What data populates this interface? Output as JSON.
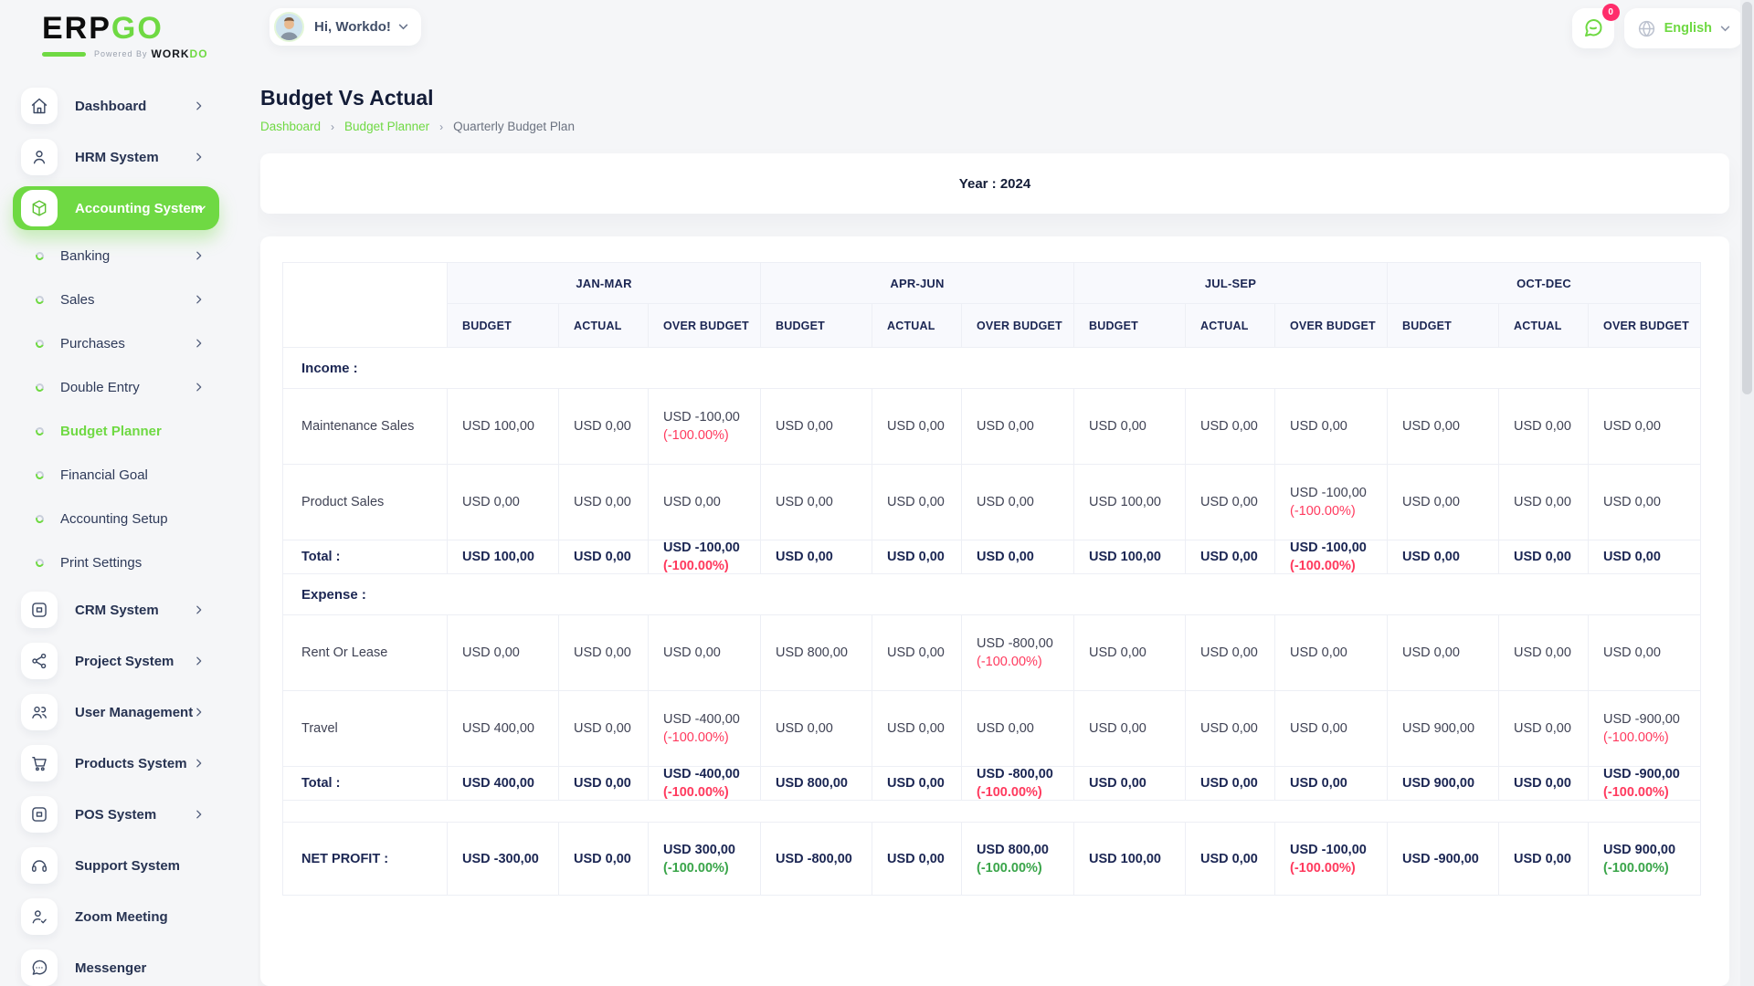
{
  "brand": {
    "logo_erp": "ERP",
    "logo_go": "GO",
    "powered_prefix": "Powered By",
    "powered_brand": "WORK",
    "powered_brand_accent": "DO"
  },
  "topbar": {
    "greeting": "Hi, Workdo!",
    "notification_badge": "0",
    "language": "English"
  },
  "sidebar": {
    "items": [
      {
        "label": "Dashboard",
        "icon": "home",
        "type": "main",
        "chevron": "right"
      },
      {
        "label": "HRM System",
        "icon": "user",
        "type": "main",
        "chevron": "right"
      },
      {
        "label": "Accounting System",
        "icon": "cube",
        "type": "main",
        "chevron": "down",
        "active": true
      },
      {
        "label": "Banking",
        "type": "sub",
        "chevron": "right"
      },
      {
        "label": "Sales",
        "type": "sub",
        "chevron": "right"
      },
      {
        "label": "Purchases",
        "type": "sub",
        "chevron": "right"
      },
      {
        "label": "Double Entry",
        "type": "sub",
        "chevron": "right"
      },
      {
        "label": "Budget Planner",
        "type": "sub",
        "active": true
      },
      {
        "label": "Financial Goal",
        "type": "sub"
      },
      {
        "label": "Accounting Setup",
        "type": "sub"
      },
      {
        "label": "Print Settings",
        "type": "sub"
      },
      {
        "label": "CRM System",
        "icon": "window",
        "type": "main",
        "chevron": "right"
      },
      {
        "label": "Project System",
        "icon": "share",
        "type": "main",
        "chevron": "right"
      },
      {
        "label": "User Management",
        "icon": "users",
        "type": "main",
        "chevron": "right"
      },
      {
        "label": "Products System",
        "icon": "cart",
        "type": "main",
        "chevron": "right"
      },
      {
        "label": "POS System",
        "icon": "window",
        "type": "main",
        "chevron": "right"
      },
      {
        "label": "Support System",
        "icon": "headset",
        "type": "main"
      },
      {
        "label": "Zoom Meeting",
        "icon": "user-check",
        "type": "main"
      },
      {
        "label": "Messenger",
        "icon": "chat",
        "type": "main"
      }
    ]
  },
  "page": {
    "title": "Budget Vs Actual",
    "breadcrumb_separator": "›",
    "breadcrumb": [
      {
        "label": "Dashboard"
      },
      {
        "label": "Budget Planner"
      },
      {
        "label": "Quarterly Budget Plan"
      }
    ],
    "year_label": "Year : 2024"
  },
  "table": {
    "quarters": [
      "JAN-MAR",
      "APR-JUN",
      "JUL-SEP",
      "OCT-DEC"
    ],
    "sub_headers": [
      "BUDGET",
      "ACTUAL",
      "OVER BUDGET"
    ],
    "rows": [
      {
        "type": "section",
        "label": "Income :"
      },
      {
        "type": "data",
        "label": "Maintenance Sales",
        "cells": [
          {
            "t": "USD 100,00"
          },
          {
            "t": "USD 0,00"
          },
          {
            "t": "USD -100,00",
            "p": "(-100.00%)",
            "pc": "negative"
          },
          {
            "t": "USD 0,00"
          },
          {
            "t": "USD 0,00"
          },
          {
            "t": "USD 0,00"
          },
          {
            "t": "USD 0,00"
          },
          {
            "t": "USD 0,00"
          },
          {
            "t": "USD 0,00"
          },
          {
            "t": "USD 0,00"
          },
          {
            "t": "USD 0,00"
          },
          {
            "t": "USD 0,00"
          }
        ]
      },
      {
        "type": "data",
        "label": "Product Sales",
        "cells": [
          {
            "t": "USD 0,00"
          },
          {
            "t": "USD 0,00"
          },
          {
            "t": "USD 0,00"
          },
          {
            "t": "USD 0,00"
          },
          {
            "t": "USD 0,00"
          },
          {
            "t": "USD 0,00"
          },
          {
            "t": "USD 100,00"
          },
          {
            "t": "USD 0,00"
          },
          {
            "t": "USD -100,00",
            "p": "(-100.00%)",
            "pc": "negative"
          },
          {
            "t": "USD 0,00"
          },
          {
            "t": "USD 0,00"
          },
          {
            "t": "USD 0,00"
          }
        ]
      },
      {
        "type": "total",
        "label": "Total :",
        "cells": [
          {
            "t": "USD 100,00"
          },
          {
            "t": "USD 0,00"
          },
          {
            "t": "USD -100,00",
            "p": "(-100.00%)",
            "pc": "negative"
          },
          {
            "t": "USD 0,00"
          },
          {
            "t": "USD 0,00"
          },
          {
            "t": "USD 0,00"
          },
          {
            "t": "USD 100,00"
          },
          {
            "t": "USD 0,00"
          },
          {
            "t": "USD -100,00",
            "p": "(-100.00%)",
            "pc": "negative"
          },
          {
            "t": "USD 0,00"
          },
          {
            "t": "USD 0,00"
          },
          {
            "t": "USD 0,00"
          }
        ]
      },
      {
        "type": "section",
        "label": "Expense :"
      },
      {
        "type": "data",
        "label": "Rent Or Lease",
        "cells": [
          {
            "t": "USD 0,00"
          },
          {
            "t": "USD 0,00"
          },
          {
            "t": "USD 0,00"
          },
          {
            "t": "USD 800,00"
          },
          {
            "t": "USD 0,00"
          },
          {
            "t": "USD -800,00",
            "p": "(-100.00%)",
            "pc": "negative"
          },
          {
            "t": "USD 0,00"
          },
          {
            "t": "USD 0,00"
          },
          {
            "t": "USD 0,00"
          },
          {
            "t": "USD 0,00"
          },
          {
            "t": "USD 0,00"
          },
          {
            "t": "USD 0,00"
          }
        ]
      },
      {
        "type": "data",
        "label": "Travel",
        "cells": [
          {
            "t": "USD 400,00"
          },
          {
            "t": "USD 0,00"
          },
          {
            "t": "USD -400,00",
            "p": "(-100.00%)",
            "pc": "negative"
          },
          {
            "t": "USD 0,00"
          },
          {
            "t": "USD 0,00"
          },
          {
            "t": "USD 0,00"
          },
          {
            "t": "USD 0,00"
          },
          {
            "t": "USD 0,00"
          },
          {
            "t": "USD 0,00"
          },
          {
            "t": "USD 900,00"
          },
          {
            "t": "USD 0,00"
          },
          {
            "t": "USD -900,00",
            "p": "(-100.00%)",
            "pc": "negative"
          }
        ]
      },
      {
        "type": "total",
        "label": "Total :",
        "cells": [
          {
            "t": "USD 400,00"
          },
          {
            "t": "USD 0,00"
          },
          {
            "t": "USD -400,00",
            "p": "(-100.00%)",
            "pc": "negative"
          },
          {
            "t": "USD 800,00"
          },
          {
            "t": "USD 0,00"
          },
          {
            "t": "USD -800,00",
            "p": "(-100.00%)",
            "pc": "negative"
          },
          {
            "t": "USD 0,00"
          },
          {
            "t": "USD 0,00"
          },
          {
            "t": "USD 0,00"
          },
          {
            "t": "USD 900,00"
          },
          {
            "t": "USD 0,00"
          },
          {
            "t": "USD -900,00",
            "p": "(-100.00%)",
            "pc": "negative"
          }
        ]
      },
      {
        "type": "spacer"
      },
      {
        "type": "net",
        "label": "NET PROFIT :",
        "cells": [
          {
            "t": "USD -300,00"
          },
          {
            "t": "USD 0,00"
          },
          {
            "t": "USD 300,00",
            "p": "(-100.00%)",
            "pc": "positive"
          },
          {
            "t": "USD -800,00"
          },
          {
            "t": "USD 0,00"
          },
          {
            "t": "USD 800,00",
            "p": "(-100.00%)",
            "pc": "positive"
          },
          {
            "t": "USD 100,00"
          },
          {
            "t": "USD 0,00"
          },
          {
            "t": "USD -100,00",
            "p": "(-100.00%)",
            "pc": "negative"
          },
          {
            "t": "USD -900,00"
          },
          {
            "t": "USD 0,00"
          },
          {
            "t": "USD 900,00",
            "p": "(-100.00%)",
            "pc": "positive"
          }
        ]
      }
    ]
  },
  "colors": {
    "accent_green": "#6fd943",
    "negative_red": "#ff3a5e",
    "positive_green": "#3aa54a",
    "badge_red": "#ff2d6b"
  }
}
